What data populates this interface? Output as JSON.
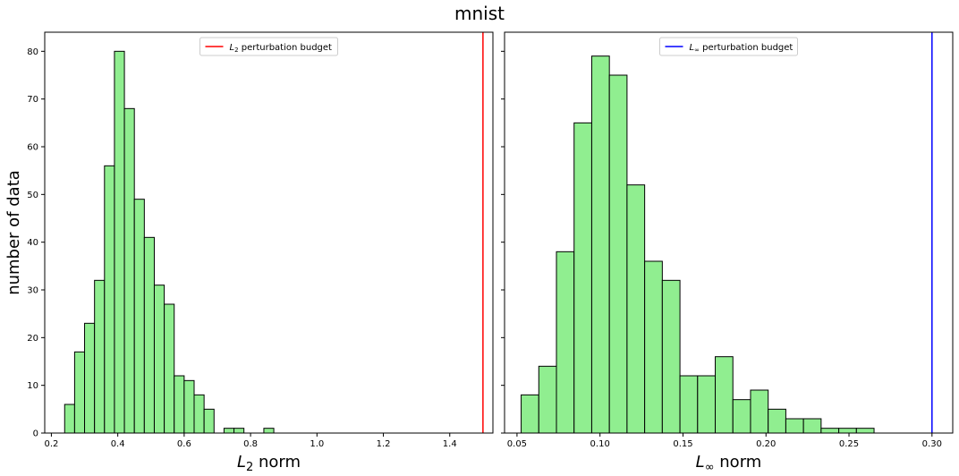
{
  "figure": {
    "title": "mnist",
    "shared_ylabel": "number of data"
  },
  "chart_data": [
    {
      "type": "bar",
      "subtype": "histogram",
      "xlabel_parts": {
        "var": "L",
        "sub": "2",
        "rest": " norm"
      },
      "ylabel": "number of data",
      "xlim": [
        0.18,
        1.53
      ],
      "ylim": [
        0,
        84
      ],
      "xticks": [
        {
          "value": 0.2,
          "label": "0.2"
        },
        {
          "value": 0.4,
          "label": "0.4"
        },
        {
          "value": 0.6,
          "label": "0.6"
        },
        {
          "value": 0.8,
          "label": "0.8"
        },
        {
          "value": 1.0,
          "label": "1.0"
        },
        {
          "value": 1.2,
          "label": "1.2"
        },
        {
          "value": 1.4,
          "label": "1.4"
        }
      ],
      "yticks": [
        {
          "value": 0,
          "label": "0"
        },
        {
          "value": 10,
          "label": "10"
        },
        {
          "value": 20,
          "label": "20"
        },
        {
          "value": 30,
          "label": "30"
        },
        {
          "value": 40,
          "label": "40"
        },
        {
          "value": 50,
          "label": "50"
        },
        {
          "value": 60,
          "label": "60"
        },
        {
          "value": 70,
          "label": "70"
        },
        {
          "value": 80,
          "label": "80"
        }
      ],
      "bin_start": 0.24,
      "bin_width": 0.03,
      "values": [
        6,
        17,
        23,
        32,
        56,
        80,
        68,
        49,
        41,
        31,
        27,
        12,
        11,
        8,
        5,
        0,
        1,
        1,
        0,
        0,
        1
      ],
      "bar_color": "#90ee90",
      "edge_color": "#000000",
      "threshold": {
        "value": 1.5,
        "color": "#ff0000"
      },
      "legend": {
        "label_parts": {
          "var": "L",
          "sub": "2",
          "rest": " perturbation budget"
        },
        "position": "upper center"
      }
    },
    {
      "type": "bar",
      "subtype": "histogram",
      "xlabel_parts": {
        "var": "L",
        "sub": "∞",
        "rest": " norm"
      },
      "xlim": [
        0.0425,
        0.3125
      ],
      "ylim": [
        0,
        84
      ],
      "xticks": [
        {
          "value": 0.05,
          "label": "0.05"
        },
        {
          "value": 0.1,
          "label": "0.10"
        },
        {
          "value": 0.15,
          "label": "0.15"
        },
        {
          "value": 0.2,
          "label": "0.20"
        },
        {
          "value": 0.25,
          "label": "0.25"
        },
        {
          "value": 0.3,
          "label": "0.30"
        }
      ],
      "bin_start": 0.0525,
      "bin_width": 0.01063,
      "values": [
        8,
        14,
        38,
        65,
        79,
        75,
        52,
        36,
        32,
        12,
        12,
        16,
        7,
        9,
        5,
        3,
        3,
        1,
        1,
        1
      ],
      "bar_color": "#90ee90",
      "edge_color": "#000000",
      "threshold": {
        "value": 0.3,
        "color": "#0000ff"
      },
      "legend": {
        "label_parts": {
          "var": "L",
          "sub": "∞",
          "rest": " perturbation budget"
        },
        "position": "upper center"
      }
    }
  ]
}
